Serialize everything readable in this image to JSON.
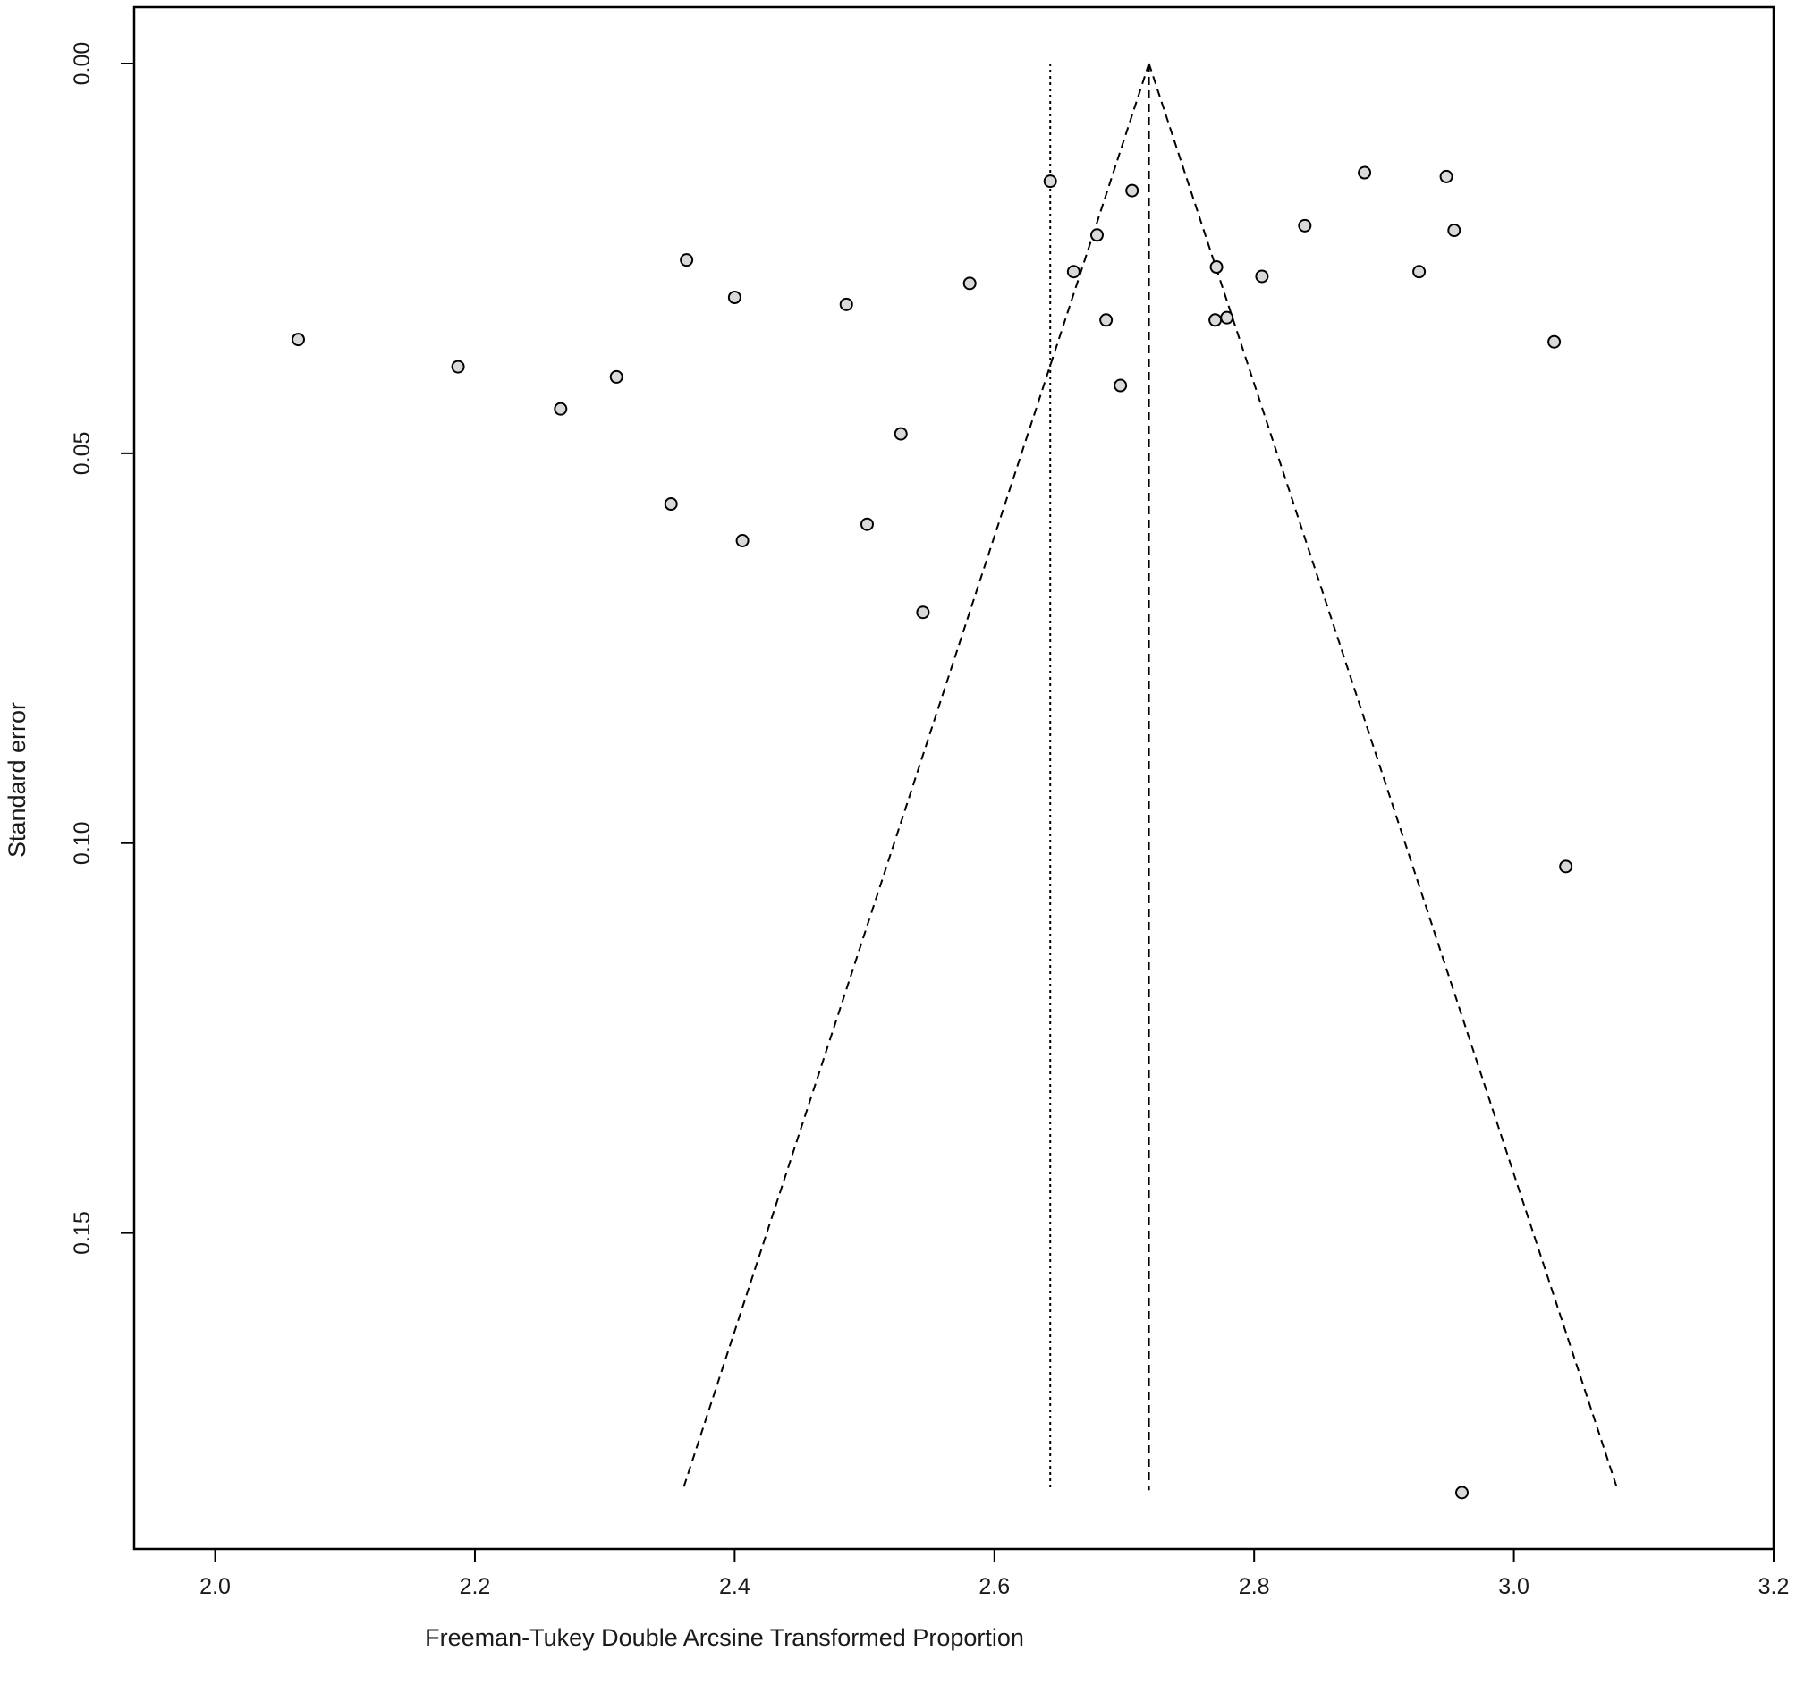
{
  "chart_data": {
    "type": "scatter",
    "title": "",
    "xlabel": "Freeman-Tukey Double Arcsine Transformed Proportion",
    "ylabel": "Standard error",
    "xlim": [
      1.97,
      3.2
    ],
    "ylim": [
      0.0,
      0.191
    ],
    "y_reversed": true,
    "grid": false,
    "legend": "none",
    "x_ticks": [
      {
        "value": 2.0,
        "label": "2.0"
      },
      {
        "value": 2.2,
        "label": "2.2"
      },
      {
        "value": 2.4,
        "label": "2.4"
      },
      {
        "value": 2.6,
        "label": "2.6"
      },
      {
        "value": 2.8,
        "label": "2.8"
      },
      {
        "value": 3.0,
        "label": "3.0"
      },
      {
        "value": 3.2,
        "label": "3.2"
      }
    ],
    "y_ticks": [
      {
        "value": 0.0,
        "label": "0.00"
      },
      {
        "value": 0.05,
        "label": "0.05"
      },
      {
        "value": 0.1,
        "label": "0.10"
      },
      {
        "value": 0.15,
        "label": "0.15"
      }
    ],
    "pooled_estimate": 2.719,
    "reference_line": 2.643,
    "funnel_max_se": 0.183,
    "funnel_lower_x": 2.36,
    "funnel_upper_x": 3.08,
    "points": [
      {
        "x": 2.064,
        "y": 0.0354
      },
      {
        "x": 2.187,
        "y": 0.0389
      },
      {
        "x": 2.266,
        "y": 0.0443
      },
      {
        "x": 2.309,
        "y": 0.0402
      },
      {
        "x": 2.351,
        "y": 0.0565
      },
      {
        "x": 2.363,
        "y": 0.0252
      },
      {
        "x": 2.4,
        "y": 0.03
      },
      {
        "x": 2.406,
        "y": 0.0612
      },
      {
        "x": 2.486,
        "y": 0.0309
      },
      {
        "x": 2.502,
        "y": 0.0591
      },
      {
        "x": 2.528,
        "y": 0.0475
      },
      {
        "x": 2.545,
        "y": 0.0704
      },
      {
        "x": 2.581,
        "y": 0.0282
      },
      {
        "x": 2.643,
        "y": 0.0151
      },
      {
        "x": 2.661,
        "y": 0.0267
      },
      {
        "x": 2.679,
        "y": 0.022
      },
      {
        "x": 2.686,
        "y": 0.0329
      },
      {
        "x": 2.697,
        "y": 0.0413
      },
      {
        "x": 2.706,
        "y": 0.0163
      },
      {
        "x": 2.77,
        "y": 0.0329
      },
      {
        "x": 2.771,
        "y": 0.0261
      },
      {
        "x": 2.779,
        "y": 0.0326
      },
      {
        "x": 2.806,
        "y": 0.0273
      },
      {
        "x": 2.839,
        "y": 0.0208
      },
      {
        "x": 2.885,
        "y": 0.014
      },
      {
        "x": 2.927,
        "y": 0.0267
      },
      {
        "x": 2.948,
        "y": 0.0145
      },
      {
        "x": 2.954,
        "y": 0.0214
      },
      {
        "x": 2.96,
        "y": 0.1833
      },
      {
        "x": 3.031,
        "y": 0.0357
      },
      {
        "x": 3.04,
        "y": 0.103
      }
    ]
  }
}
